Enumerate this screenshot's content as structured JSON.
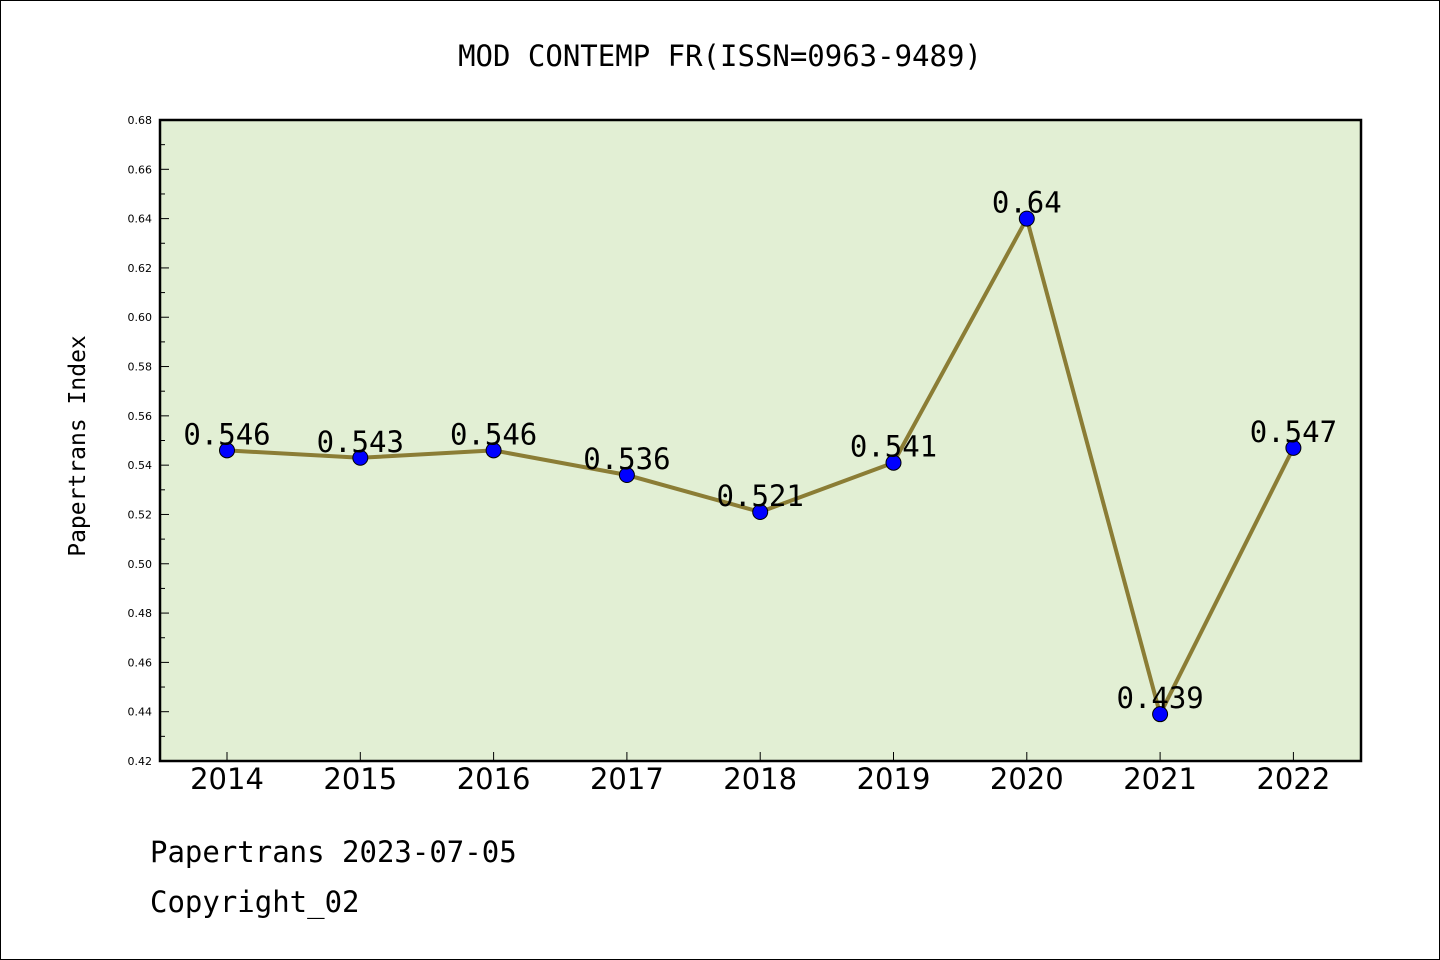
{
  "chart_data": {
    "type": "line",
    "title": "MOD CONTEMP FR(ISSN=0963-9489)",
    "xlabel": "",
    "ylabel": "Papertrans Index",
    "categories": [
      "2014",
      "2015",
      "2016",
      "2017",
      "2018",
      "2019",
      "2020",
      "2021",
      "2022"
    ],
    "series": [
      {
        "values": [
          0.546,
          0.543,
          0.546,
          0.536,
          0.521,
          0.541,
          0.64,
          0.439,
          0.547
        ],
        "data_labels": [
          "0.546",
          "0.543",
          "0.546",
          "0.536",
          "0.521",
          "0.541",
          "0.64",
          "0.439",
          "0.547"
        ]
      }
    ],
    "ylim": [
      0.42,
      0.68
    ],
    "ytick_labels": [
      "0.42",
      "0.44",
      "0.46",
      "0.48",
      "0.50",
      "0.52",
      "0.54",
      "0.56",
      "0.58",
      "0.60",
      "0.62",
      "0.64",
      "0.66",
      "0.68"
    ],
    "grid": false,
    "colors": {
      "plot_background": "#e2efd4",
      "line": "#8b7d35",
      "marker": "#0000ff"
    }
  },
  "footer": {
    "line1": "Papertrans 2023-07-05",
    "line2": "Copyright_02"
  }
}
